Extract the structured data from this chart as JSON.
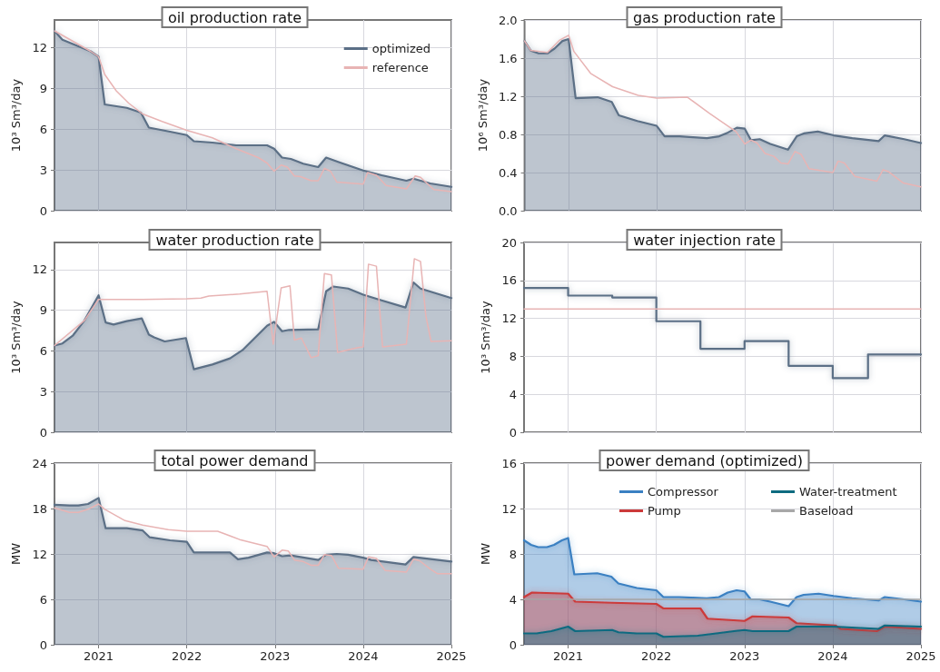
{
  "chart_data": [
    {
      "type": "line",
      "title": "oil production rate",
      "ylabel": "10³ Sm³/day",
      "xlim": [
        2020.5,
        2025
      ],
      "xticks": [
        2021,
        2022,
        2023,
        2024,
        2025
      ],
      "ylim": [
        0,
        14
      ],
      "yticks": [
        0,
        3,
        6,
        9,
        12
      ],
      "grid": true,
      "legend": "top right",
      "tick_labels": "y",
      "series": [
        {
          "name": "optimized",
          "type": "area",
          "color": "#5b6f86",
          "x": [
            2020.5,
            2020.59,
            2020.91,
            2021.0,
            2021.07,
            2021.32,
            2021.48,
            2021.57,
            2021.81,
            2022.0,
            2022.08,
            2022.29,
            2022.56,
            2022.91,
            2022.99,
            2023.08,
            2023.18,
            2023.32,
            2023.49,
            2023.58,
            2023.73,
            2024.0,
            2024.21,
            2024.49,
            2024.57,
            2024.76,
            2025.0
          ],
          "values": [
            13.2,
            12.55,
            11.7,
            11.3,
            7.8,
            7.55,
            7.2,
            6.1,
            5.8,
            5.55,
            5.1,
            5.0,
            4.8,
            4.8,
            4.55,
            3.9,
            3.8,
            3.45,
            3.2,
            3.9,
            3.55,
            2.95,
            2.6,
            2.2,
            2.35,
            2.0,
            1.75
          ]
        },
        {
          "name": "reference",
          "color": "#e8b4b4",
          "x": [
            2020.5,
            2020.91,
            2021.0,
            2021.07,
            2021.2,
            2021.34,
            2021.5,
            2021.72,
            2022.0,
            2022.29,
            2022.56,
            2022.81,
            2022.91,
            2022.99,
            2023.07,
            2023.14,
            2023.22,
            2023.29,
            2023.41,
            2023.49,
            2023.56,
            2023.63,
            2023.7,
            2024.0,
            2024.05,
            2024.15,
            2024.26,
            2024.4,
            2024.49,
            2024.59,
            2024.65,
            2024.8,
            2025.0
          ],
          "values": [
            13.2,
            11.7,
            11.3,
            10.0,
            8.8,
            7.9,
            7.1,
            6.55,
            5.9,
            5.35,
            4.55,
            3.9,
            3.5,
            2.9,
            3.35,
            3.2,
            2.55,
            2.5,
            2.2,
            2.2,
            3.1,
            2.9,
            2.1,
            1.95,
            2.8,
            2.6,
            1.85,
            1.7,
            1.6,
            2.55,
            2.45,
            1.55,
            1.4
          ]
        }
      ]
    },
    {
      "type": "line",
      "title": "gas production rate",
      "ylabel": "10⁶ Sm³/day",
      "xlim": [
        2020.5,
        2025
      ],
      "xticks": [
        2021,
        2022,
        2023,
        2024,
        2025
      ],
      "ylim": [
        0,
        2
      ],
      "yticks": [
        {
          "value": 0,
          "label": "0.0"
        },
        0.4,
        0.8,
        1.2,
        1.6,
        {
          "value": 2,
          "label": "2.0"
        }
      ],
      "grid": true,
      "tick_labels": "y",
      "series": [
        {
          "type": "area",
          "color": "#5b6f86",
          "x": [
            2020.5,
            2020.57,
            2020.66,
            2020.76,
            2020.84,
            2020.93,
            2021.0,
            2021.08,
            2021.33,
            2021.49,
            2021.57,
            2021.78,
            2022.0,
            2022.09,
            2022.26,
            2022.57,
            2022.71,
            2022.81,
            2022.91,
            2023.0,
            2023.07,
            2023.17,
            2023.29,
            2023.49,
            2023.59,
            2023.67,
            2023.83,
            2024.01,
            2024.22,
            2024.52,
            2024.59,
            2024.81,
            2025.0
          ],
          "values": [
            1.78,
            1.68,
            1.65,
            1.65,
            1.7,
            1.78,
            1.8,
            1.18,
            1.19,
            1.14,
            1.0,
            0.94,
            0.89,
            0.78,
            0.78,
            0.76,
            0.78,
            0.82,
            0.87,
            0.86,
            0.74,
            0.75,
            0.7,
            0.64,
            0.78,
            0.81,
            0.83,
            0.79,
            0.76,
            0.73,
            0.79,
            0.75,
            0.71
          ]
        },
        {
          "color": "#e8b4b4",
          "x": [
            2020.5,
            2020.57,
            2020.76,
            2020.9,
            2021.0,
            2021.06,
            2021.25,
            2021.5,
            2021.79,
            2022.0,
            2022.35,
            2022.6,
            2022.9,
            2023.0,
            2023.07,
            2023.14,
            2023.23,
            2023.33,
            2023.41,
            2023.49,
            2023.57,
            2023.64,
            2023.73,
            2024.0,
            2024.06,
            2024.13,
            2024.25,
            2024.5,
            2024.57,
            2024.63,
            2024.8,
            2025.0
          ],
          "values": [
            1.78,
            1.68,
            1.66,
            1.79,
            1.84,
            1.67,
            1.44,
            1.3,
            1.21,
            1.18,
            1.19,
            1.02,
            0.83,
            0.7,
            0.74,
            0.71,
            0.6,
            0.57,
            0.5,
            0.49,
            0.62,
            0.59,
            0.44,
            0.4,
            0.52,
            0.5,
            0.36,
            0.31,
            0.43,
            0.41,
            0.29,
            0.25
          ]
        }
      ]
    },
    {
      "type": "line",
      "title": "water production rate",
      "ylabel": "10³ Sm³/day",
      "xlim": [
        2020.5,
        2025
      ],
      "xticks": [
        2021,
        2022,
        2023,
        2024,
        2025
      ],
      "ylim": [
        0,
        14
      ],
      "yticks": [
        0,
        3,
        6,
        9,
        12
      ],
      "grid": true,
      "tick_labels": "y",
      "series": [
        {
          "type": "area",
          "color": "#5b6f86",
          "x": [
            2020.5,
            2020.59,
            2020.71,
            2020.84,
            2021.0,
            2021.08,
            2021.17,
            2021.32,
            2021.49,
            2021.57,
            2021.63,
            2021.75,
            2021.99,
            2022.08,
            2022.29,
            2022.49,
            2022.63,
            2022.91,
            2022.99,
            2023.08,
            2023.16,
            2023.49,
            2023.58,
            2023.66,
            2023.83,
            2024.0,
            2024.2,
            2024.48,
            2024.57,
            2024.65,
            2025.0
          ],
          "values": [
            6.4,
            6.55,
            7.15,
            8.25,
            10.1,
            8.1,
            7.95,
            8.2,
            8.4,
            7.2,
            7.0,
            6.7,
            6.95,
            4.65,
            5.0,
            5.45,
            6.05,
            7.85,
            8.15,
            7.45,
            7.55,
            7.6,
            10.4,
            10.75,
            10.6,
            10.15,
            9.75,
            9.2,
            11.05,
            10.6,
            9.9
          ]
        },
        {
          "color": "#e8b4b4",
          "x": [
            2020.5,
            2020.84,
            2021.0,
            2021.5,
            2022.0,
            2022.16,
            2022.25,
            2022.6,
            2022.91,
            2022.98,
            2023.07,
            2023.17,
            2023.22,
            2023.3,
            2023.41,
            2023.49,
            2023.56,
            2023.64,
            2023.71,
            2023.94,
            2024.0,
            2024.06,
            2024.15,
            2024.22,
            2024.49,
            2024.58,
            2024.65,
            2024.71,
            2024.77,
            2025.0
          ],
          "values": [
            6.4,
            8.25,
            9.8,
            9.8,
            9.85,
            9.9,
            10.05,
            10.2,
            10.4,
            6.5,
            10.65,
            10.8,
            6.8,
            6.95,
            5.5,
            5.65,
            11.7,
            11.6,
            5.9,
            6.25,
            6.3,
            12.4,
            12.25,
            6.3,
            6.5,
            12.8,
            12.6,
            8.6,
            6.7,
            6.75
          ]
        }
      ]
    },
    {
      "type": "line",
      "title": "water injection rate",
      "ylabel": "10³ Sm³/day",
      "xlim": [
        2020.5,
        2025
      ],
      "xticks": [
        2021,
        2022,
        2023,
        2024,
        2025
      ],
      "ylim": [
        0,
        20
      ],
      "yticks": [
        0,
        4,
        8,
        12,
        16,
        20
      ],
      "grid": true,
      "tick_labels": "y",
      "series": [
        {
          "type": "step",
          "color": "#5b6f86",
          "x": [
            2020.5,
            2021.0,
            2021.5,
            2022.0,
            2022.5,
            2023.0,
            2023.5,
            2024.0,
            2024.4,
            2025.0
          ],
          "values": [
            15.2,
            14.4,
            14.2,
            11.7,
            8.8,
            9.6,
            7.0,
            5.7,
            8.2,
            8.2
          ]
        },
        {
          "color": "#e8b4b4",
          "x": [
            2020.5,
            2025.0
          ],
          "values": [
            13.0,
            13.0
          ]
        }
      ]
    },
    {
      "type": "line",
      "title": "total power demand",
      "ylabel": "MW",
      "xlim": [
        2020.5,
        2025
      ],
      "xticks": [
        2021,
        2022,
        2023,
        2024,
        2025
      ],
      "ylim": [
        0,
        24
      ],
      "yticks": [
        0,
        6,
        12,
        18,
        24
      ],
      "grid": true,
      "series": [
        {
          "type": "area",
          "color": "#5b6f86",
          "x": [
            2020.5,
            2020.67,
            2020.77,
            2020.88,
            2021.0,
            2021.08,
            2021.32,
            2021.5,
            2021.58,
            2021.81,
            2022.0,
            2022.08,
            2022.49,
            2022.58,
            2022.7,
            2022.91,
            2022.99,
            2023.08,
            2023.18,
            2023.49,
            2023.58,
            2023.7,
            2023.83,
            2024.0,
            2024.09,
            2024.48,
            2024.57,
            2025.0
          ],
          "values": [
            18.5,
            18.4,
            18.4,
            18.6,
            19.4,
            15.4,
            15.4,
            15.1,
            14.2,
            13.8,
            13.6,
            12.2,
            12.2,
            11.3,
            11.5,
            12.2,
            12.1,
            11.7,
            11.8,
            11.2,
            11.9,
            12.0,
            11.9,
            11.5,
            11.2,
            10.6,
            11.6,
            11.0
          ]
        },
        {
          "color": "#e8b4b4",
          "x": [
            2020.5,
            2020.67,
            2020.77,
            2020.88,
            2021.0,
            2021.07,
            2021.3,
            2021.5,
            2021.79,
            2022.0,
            2022.35,
            2022.6,
            2022.91,
            2022.99,
            2023.08,
            2023.15,
            2023.22,
            2023.32,
            2023.41,
            2023.49,
            2023.56,
            2023.64,
            2023.72,
            2024.0,
            2024.06,
            2024.15,
            2024.25,
            2024.49,
            2024.57,
            2024.64,
            2024.76,
            2024.84,
            2025.0
          ],
          "values": [
            18.1,
            17.5,
            17.5,
            17.9,
            18.6,
            17.9,
            16.4,
            15.8,
            15.2,
            15.0,
            15.0,
            13.9,
            13.0,
            11.6,
            12.5,
            12.4,
            11.2,
            11.0,
            10.5,
            10.5,
            11.9,
            11.8,
            10.1,
            10.0,
            11.6,
            11.4,
            9.8,
            9.6,
            11.3,
            11.1,
            10.0,
            9.4,
            9.4
          ]
        }
      ]
    },
    {
      "type": "area",
      "title": "power demand (optimized)",
      "ylabel": "MW",
      "xlim": [
        2020.5,
        2025
      ],
      "xticks": [
        2021,
        2022,
        2023,
        2024,
        2025
      ],
      "ylim": [
        0,
        16
      ],
      "yticks": [
        0,
        4,
        8,
        12,
        16
      ],
      "grid": true,
      "legend": "top right",
      "series": [
        {
          "name": "Compressor",
          "color": "#3a80c2",
          "x": [
            2020.5,
            2020.58,
            2020.66,
            2020.76,
            2020.84,
            2020.93,
            2021.0,
            2021.07,
            2021.33,
            2021.49,
            2021.57,
            2021.78,
            2022.0,
            2022.08,
            2022.26,
            2022.57,
            2022.71,
            2022.81,
            2022.91,
            2023.0,
            2023.07,
            2023.17,
            2023.29,
            2023.5,
            2023.59,
            2023.67,
            2023.84,
            2024.01,
            2024.22,
            2024.52,
            2024.59,
            2024.81,
            2025.0
          ],
          "values": [
            9.2,
            8.8,
            8.6,
            8.6,
            8.8,
            9.2,
            9.4,
            6.2,
            6.3,
            6.0,
            5.4,
            5.0,
            4.8,
            4.2,
            4.2,
            4.1,
            4.2,
            4.6,
            4.8,
            4.7,
            4.0,
            4.0,
            3.8,
            3.4,
            4.2,
            4.4,
            4.5,
            4.3,
            4.1,
            3.9,
            4.2,
            4.0,
            3.8
          ]
        },
        {
          "name": "Pump",
          "color": "#cc3a3a",
          "x": [
            2020.5,
            2020.59,
            2021.0,
            2021.08,
            2021.5,
            2022.0,
            2022.08,
            2022.5,
            2022.58,
            2023.0,
            2023.09,
            2023.5,
            2023.59,
            2024.03,
            2024.09,
            2024.5,
            2024.59,
            2025.0
          ],
          "values": [
            4.2,
            4.6,
            4.5,
            3.8,
            3.7,
            3.6,
            3.2,
            3.2,
            2.3,
            2.1,
            2.5,
            2.4,
            1.9,
            1.7,
            1.4,
            1.2,
            1.6,
            1.4
          ]
        },
        {
          "name": "Water-treatment",
          "color": "#0e6b80",
          "x": [
            2020.5,
            2020.64,
            2020.81,
            2021.0,
            2021.08,
            2021.5,
            2021.57,
            2021.78,
            2022.0,
            2022.08,
            2022.47,
            2022.68,
            2022.88,
            2023.0,
            2023.09,
            2023.5,
            2023.59,
            2023.67,
            2024.01,
            2024.52,
            2024.59,
            2025.0
          ],
          "values": [
            1.0,
            1.0,
            1.2,
            1.6,
            1.2,
            1.3,
            1.1,
            1.0,
            1.0,
            0.7,
            0.8,
            1.0,
            1.2,
            1.3,
            1.2,
            1.2,
            1.6,
            1.6,
            1.6,
            1.4,
            1.7,
            1.6
          ]
        },
        {
          "name": "Baseload",
          "type": "line",
          "color": "#a8a8a8",
          "x": [
            2020.5,
            2025.0
          ],
          "values": [
            4.0,
            4.0
          ]
        }
      ]
    }
  ]
}
